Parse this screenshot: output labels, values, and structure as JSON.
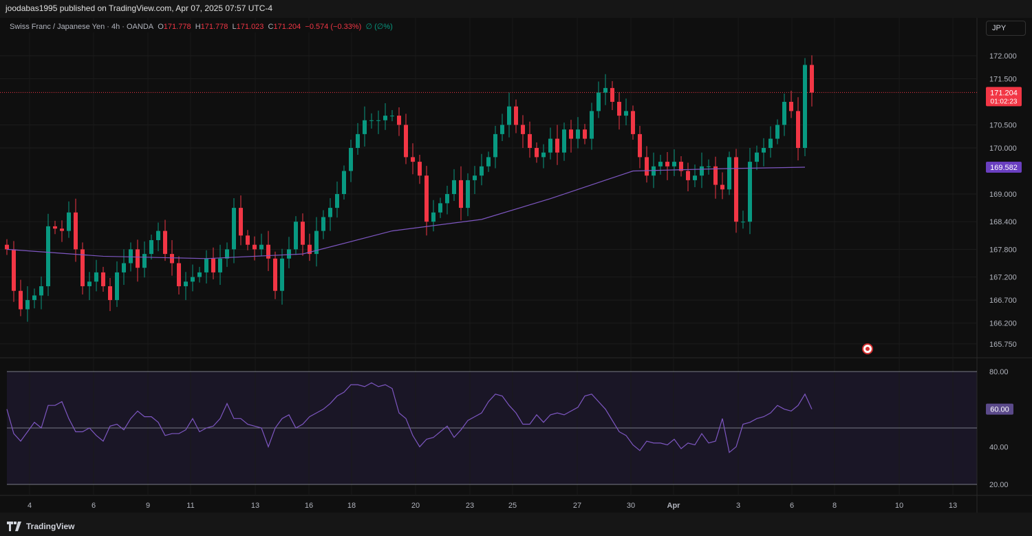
{
  "header": {
    "published": "joodabas1995 published on TradingView.com, Apr 07, 2025 07:57 UTC-4"
  },
  "legend": {
    "symbol": "Swiss Franc / Japanese Yen · 4h · OANDA",
    "o_label": "O",
    "o": "171.778",
    "h_label": "H",
    "h": "171.778",
    "l_label": "L",
    "l": "171.023",
    "c_label": "C",
    "c": "171.204",
    "change": "−0.574 (−0.33%)",
    "extra": "∅ (∅%)"
  },
  "currency_button": "JPY",
  "footer": {
    "brand": "TradingView"
  },
  "colors": {
    "up": "#089981",
    "down": "#f23645",
    "ma": "#7e57c2",
    "rsi": "#7e57c2"
  },
  "chart_data": [
    {
      "type": "candlestick",
      "title": "Swiss Franc / Japanese Yen 4h",
      "ylim": [
        165.5,
        172.6
      ],
      "yticks": [
        "172.000",
        "171.500",
        "170.500",
        "170.000",
        "169.000",
        "168.400",
        "167.800",
        "167.200",
        "166.700",
        "166.200",
        "165.750"
      ],
      "closes": [
        167.8,
        166.9,
        166.5,
        166.7,
        166.8,
        167.0,
        168.3,
        168.25,
        168.2,
        168.6,
        167.8,
        167.0,
        167.1,
        167.3,
        167.0,
        166.7,
        167.3,
        167.5,
        167.8,
        167.4,
        167.7,
        168.0,
        168.2,
        167.7,
        167.5,
        167.0,
        167.1,
        167.2,
        167.3,
        167.6,
        167.3,
        167.6,
        167.8,
        168.7,
        168.1,
        167.9,
        167.8,
        167.9,
        167.6,
        166.9,
        167.6,
        167.8,
        168.4,
        167.9,
        167.7,
        168.2,
        168.5,
        168.7,
        169.0,
        169.5,
        170.0,
        170.3,
        170.6,
        170.6,
        170.6,
        170.7,
        170.7,
        170.5,
        169.8,
        169.7,
        169.4,
        168.4,
        168.6,
        168.8,
        169.0,
        169.3,
        168.7,
        169.3,
        169.4,
        169.6,
        169.8,
        170.3,
        170.5,
        170.9,
        170.5,
        170.3,
        170.0,
        169.8,
        169.9,
        170.2,
        169.9,
        170.4,
        170.2,
        170.4,
        170.2,
        170.8,
        171.2,
        171.3,
        171.0,
        170.7,
        170.8,
        170.3,
        169.8,
        169.4,
        169.6,
        169.7,
        169.6,
        169.7,
        169.5,
        169.3,
        169.4,
        169.6,
        169.6,
        169.2,
        169.1,
        169.8,
        168.4,
        168.4,
        169.7,
        169.9,
        170.0,
        170.2,
        170.5,
        171.0,
        170.8,
        170.0,
        171.8,
        171.2
      ],
      "first_open": 167.9,
      "ma": [
        [
          0,
          167.8
        ],
        [
          14,
          167.65
        ],
        [
          29,
          167.6
        ],
        [
          43,
          167.7
        ],
        [
          56,
          168.2
        ],
        [
          69,
          168.45
        ],
        [
          79,
          168.9
        ],
        [
          84,
          169.15
        ],
        [
          91,
          169.5
        ],
        [
          104,
          169.55
        ],
        [
          116,
          169.582
        ]
      ],
      "ma_label": "169.582",
      "last_price": "171.204",
      "countdown": "01:02:23",
      "last_value": 171.204,
      "xticks": [
        [
          3.3,
          "4"
        ],
        [
          12.6,
          "6"
        ],
        [
          20.5,
          "9"
        ],
        [
          26.7,
          "11"
        ],
        [
          36.1,
          "13"
        ],
        [
          43.9,
          "16"
        ],
        [
          50.1,
          "18"
        ],
        [
          59.4,
          "20"
        ],
        [
          67.3,
          "23"
        ],
        [
          73.5,
          "25"
        ],
        [
          82.9,
          "27"
        ],
        [
          90.7,
          "30"
        ],
        [
          96.9,
          "Apr"
        ],
        [
          106.3,
          "3"
        ],
        [
          114.1,
          "6"
        ],
        [
          120.3,
          "8"
        ],
        [
          129.7,
          "10"
        ],
        [
          137.5,
          "13"
        ]
      ]
    },
    {
      "type": "line",
      "title": "RSI",
      "ylim": [
        20,
        80
      ],
      "yticks": [
        "80.00",
        "40.00",
        "20.00"
      ],
      "bands": [
        80,
        50,
        20
      ],
      "last_label": "60.00",
      "values": [
        60,
        47,
        43,
        48,
        53,
        50,
        62,
        62,
        64,
        55,
        48,
        48,
        50,
        46,
        43,
        51,
        52,
        49,
        55,
        59,
        56,
        56,
        53,
        46,
        47,
        47,
        49,
        55,
        48,
        50,
        51,
        55,
        63,
        55,
        55,
        52,
        51,
        50,
        40,
        50,
        55,
        57,
        50,
        52,
        56,
        58,
        60,
        63,
        67,
        69,
        73,
        73,
        72,
        74,
        72,
        73,
        71,
        58,
        55,
        46,
        40,
        44,
        45,
        48,
        51,
        45,
        49,
        54,
        56,
        58,
        64,
        68,
        67,
        62,
        58,
        52,
        52,
        57,
        53,
        57,
        58,
        57,
        59,
        61,
        67,
        68,
        64,
        60,
        54,
        48,
        46,
        41,
        38,
        43,
        42,
        42,
        41,
        44,
        39,
        42,
        41,
        47,
        42,
        43,
        55,
        37,
        40,
        52,
        53,
        55,
        56,
        58,
        62,
        60,
        59,
        62,
        68,
        60
      ]
    }
  ]
}
